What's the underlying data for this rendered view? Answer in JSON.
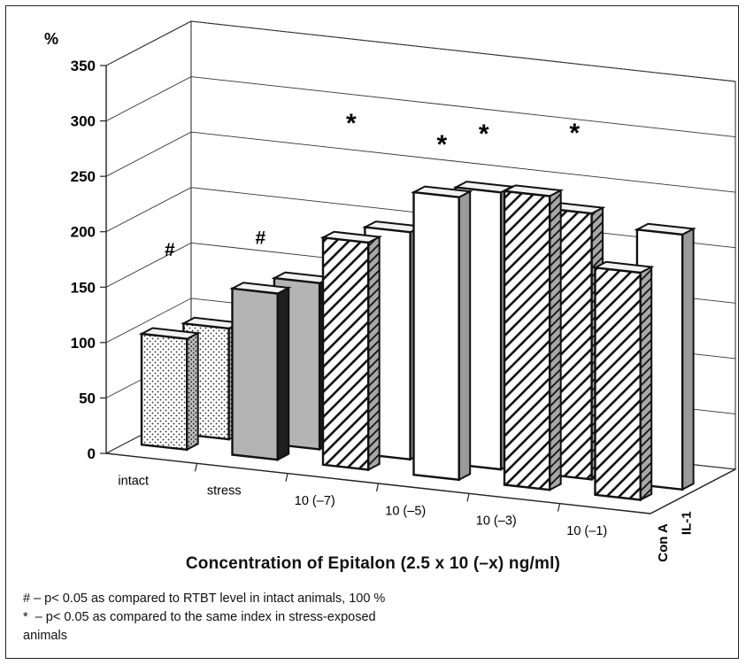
{
  "chart_data": {
    "type": "bar",
    "title": "",
    "ylabel": "%",
    "xlabel": "Concentration of Epitalon (2.5 x 10 (–x) ng/ml)",
    "ylim": [
      0,
      350
    ],
    "yticks": [
      "0",
      "50",
      "100",
      "150",
      "200",
      "250",
      "300",
      "350"
    ],
    "categories": [
      "intact",
      "stress",
      "10 (–7)",
      "10 (–5)",
      "10 (–3)",
      "10 (–1)"
    ],
    "series": [
      {
        "name": "Con A",
        "values": [
          100,
          150,
          205,
          255,
          265,
          205
        ]
      },
      {
        "name": "IL-1",
        "values": [
          100,
          150,
          205,
          250,
          240,
          230
        ]
      }
    ],
    "series_fills": [
      [
        "dots",
        "gray",
        "hatch",
        "white",
        "hatch",
        "hatch"
      ],
      [
        "dots",
        "gray",
        "white",
        "white",
        "hatch",
        "white"
      ]
    ],
    "annotations": [
      {
        "text": "#",
        "category": 0,
        "series": 0,
        "y": 170
      },
      {
        "text": "#",
        "category": 1,
        "series": 0,
        "y": 190
      },
      {
        "text": "*",
        "category": 2,
        "series": 0,
        "y": 300
      },
      {
        "text": "*",
        "category": 3,
        "series": 0,
        "y": 290
      },
      {
        "text": "*",
        "category": 3,
        "series": 1,
        "y": 290
      },
      {
        "text": "*",
        "category": 4,
        "series": 1,
        "y": 300
      }
    ],
    "grid": true,
    "legend": "none"
  },
  "footnotes": [
    "# – p< 0.05 as compared to RTBT level in intact animals, 100 %",
    "*  – p< 0.05 as compared to the same index in stress-exposed",
    "animals"
  ],
  "colors": {
    "gray_face": "#b4b4b4",
    "gray_side": "#1e1e1e",
    "white_face": "#ffffff",
    "side_shade": "#9a9a9a",
    "top_face": "#f2f2f2",
    "stroke": "#111111"
  }
}
